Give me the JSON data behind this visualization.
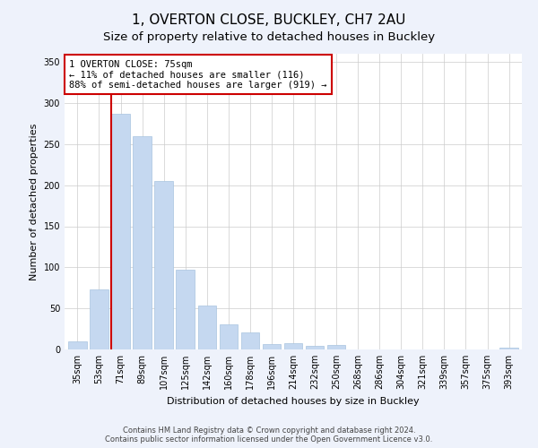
{
  "title": "1, OVERTON CLOSE, BUCKLEY, CH7 2AU",
  "subtitle": "Size of property relative to detached houses in Buckley",
  "xlabel": "Distribution of detached houses by size in Buckley",
  "ylabel": "Number of detached properties",
  "bar_labels": [
    "35sqm",
    "53sqm",
    "71sqm",
    "89sqm",
    "107sqm",
    "125sqm",
    "142sqm",
    "160sqm",
    "178sqm",
    "196sqm",
    "214sqm",
    "232sqm",
    "250sqm",
    "268sqm",
    "286sqm",
    "304sqm",
    "321sqm",
    "339sqm",
    "357sqm",
    "375sqm",
    "393sqm"
  ],
  "bar_values": [
    10,
    73,
    287,
    260,
    205,
    97,
    54,
    31,
    21,
    7,
    8,
    4,
    5,
    0,
    0,
    0,
    0,
    0,
    0,
    0,
    2
  ],
  "bar_color": "#c5d8f0",
  "bar_edge_color": "#a8c4e0",
  "highlight_line_color": "#cc0000",
  "highlight_bar_index": 2,
  "ylim": [
    0,
    360
  ],
  "yticks": [
    0,
    50,
    100,
    150,
    200,
    250,
    300,
    350
  ],
  "annotation_title": "1 OVERTON CLOSE: 75sqm",
  "annotation_line1": "← 11% of detached houses are smaller (116)",
  "annotation_line2": "88% of semi-detached houses are larger (919) →",
  "footer_line1": "Contains HM Land Registry data © Crown copyright and database right 2024.",
  "footer_line2": "Contains public sector information licensed under the Open Government Licence v3.0.",
  "background_color": "#eef2fb",
  "plot_bg_color": "#ffffff",
  "title_fontsize": 11,
  "subtitle_fontsize": 9.5,
  "axis_label_fontsize": 8,
  "tick_fontsize": 7,
  "footer_fontsize": 6
}
